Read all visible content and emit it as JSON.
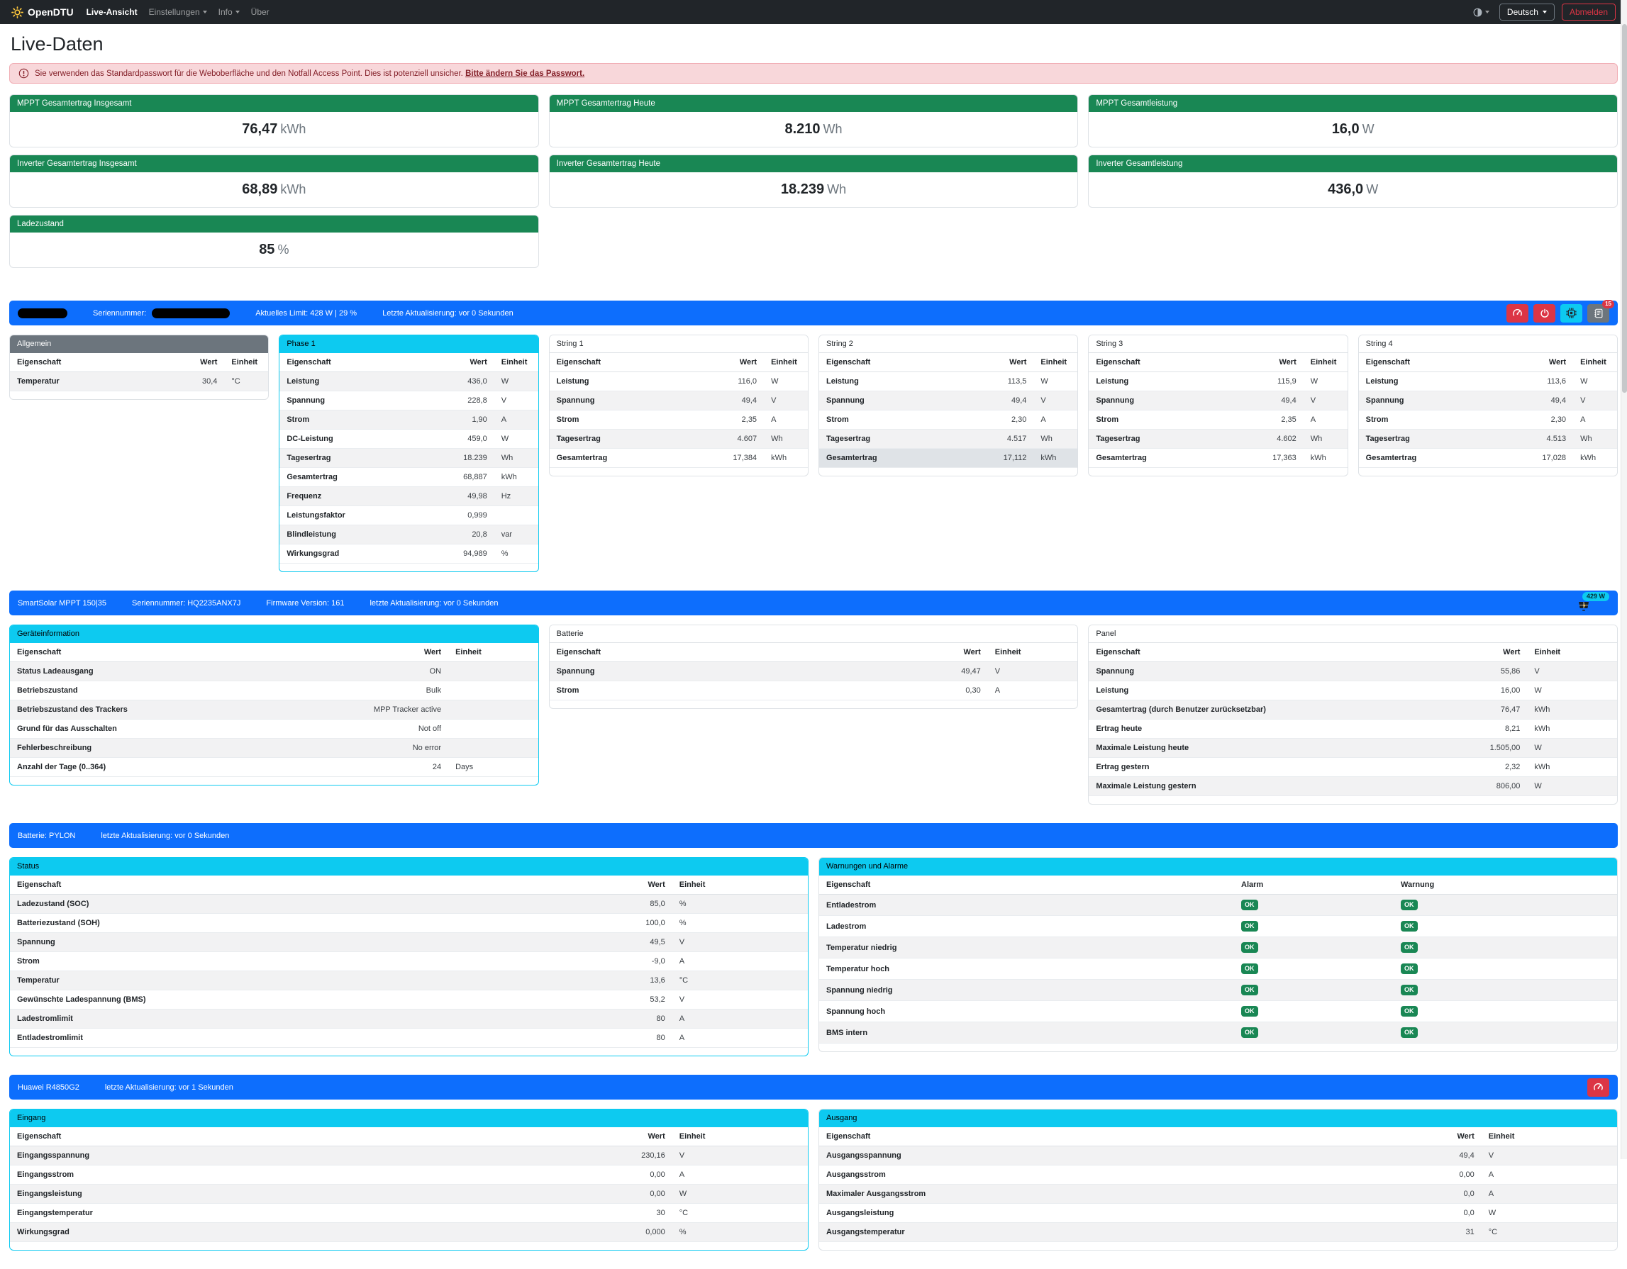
{
  "navbar": {
    "brand": "OpenDTU",
    "items": [
      {
        "label": "Live-Ansicht"
      },
      {
        "label": "Einstellungen"
      },
      {
        "label": "Info"
      },
      {
        "label": "Über"
      }
    ],
    "language": "Deutsch",
    "logout": "Abmelden"
  },
  "page": {
    "title": "Live-Daten"
  },
  "alert": {
    "text": "Sie verwenden das Standardpasswort für die Weboberfläche und den Notfall Access Point. Dies ist potenziell unsicher.",
    "link": "Bitte ändern Sie das Passwort."
  },
  "summary_cards": [
    {
      "title": "MPPT Gesamtertrag Insgesamt",
      "value": "76,47",
      "unit": "kWh"
    },
    {
      "title": "MPPT Gesamtertrag Heute",
      "value": "8.210",
      "unit": "Wh"
    },
    {
      "title": "MPPT Gesamtleistung",
      "value": "16,0",
      "unit": "W"
    },
    {
      "title": "Inverter Gesamtertrag Insgesamt",
      "value": "68,89",
      "unit": "kWh"
    },
    {
      "title": "Inverter Gesamtertrag Heute",
      "value": "18.239",
      "unit": "Wh"
    },
    {
      "title": "Inverter Gesamtleistung",
      "value": "436,0",
      "unit": "W"
    },
    {
      "title": "Ladezustand",
      "value": "85",
      "unit": "%"
    }
  ],
  "inverter": {
    "bar": {
      "serial_label": "Seriennummer:",
      "limit": "Aktuelles Limit: 428 W | 29 %",
      "updated": "Letzte Aktualisierung: vor 0 Sekunden",
      "events_count": "15"
    },
    "cards": {
      "allgemein": {
        "title": "Allgemein",
        "columns": [
          "Eigenschaft",
          "Wert",
          "Einheit"
        ],
        "stripe": "odd",
        "rows": [
          [
            "Temperatur",
            "30,4",
            "°C"
          ]
        ]
      },
      "phase1": {
        "title": "Phase 1",
        "columns": [
          "Eigenschaft",
          "Wert",
          "Einheit"
        ],
        "stripe": "odd",
        "rows": [
          [
            "Leistung",
            "436,0",
            "W"
          ],
          [
            "Spannung",
            "228,8",
            "V"
          ],
          [
            "Strom",
            "1,90",
            "A"
          ],
          [
            "DC-Leistung",
            "459,0",
            "W"
          ],
          [
            "Tagesertrag",
            "18.239",
            "Wh"
          ],
          [
            "Gesamtertrag",
            "68,887",
            "kWh"
          ],
          [
            "Frequenz",
            "49,98",
            "Hz"
          ],
          [
            "Leistungsfaktor",
            "0,999",
            ""
          ],
          [
            "Blindleistung",
            "20,8",
            "var"
          ],
          [
            "Wirkungsgrad",
            "94,989",
            "%"
          ]
        ]
      },
      "string1": {
        "title": "String 1",
        "columns": [
          "Eigenschaft",
          "Wert",
          "Einheit"
        ],
        "stripe": "even",
        "rows": [
          [
            "Leistung",
            "116,0",
            "W"
          ],
          [
            "Spannung",
            "49,4",
            "V"
          ],
          [
            "Strom",
            "2,35",
            "A"
          ],
          [
            "Tagesertrag",
            "4.607",
            "Wh"
          ],
          [
            "Gesamtertrag",
            "17,384",
            "kWh"
          ]
        ]
      },
      "string2": {
        "title": "String 2",
        "columns": [
          "Eigenschaft",
          "Wert",
          "Einheit"
        ],
        "stripe": "even",
        "highlight_row": 4,
        "rows": [
          [
            "Leistung",
            "113,5",
            "W"
          ],
          [
            "Spannung",
            "49,4",
            "V"
          ],
          [
            "Strom",
            "2,30",
            "A"
          ],
          [
            "Tagesertrag",
            "4.517",
            "Wh"
          ],
          [
            "Gesamtertrag",
            "17,112",
            "kWh"
          ]
        ]
      },
      "string3": {
        "title": "String 3",
        "columns": [
          "Eigenschaft",
          "Wert",
          "Einheit"
        ],
        "stripe": "even",
        "rows": [
          [
            "Leistung",
            "115,9",
            "W"
          ],
          [
            "Spannung",
            "49,4",
            "V"
          ],
          [
            "Strom",
            "2,35",
            "A"
          ],
          [
            "Tagesertrag",
            "4.602",
            "Wh"
          ],
          [
            "Gesamtertrag",
            "17,363",
            "kWh"
          ]
        ]
      },
      "string4": {
        "title": "String 4",
        "columns": [
          "Eigenschaft",
          "Wert",
          "Einheit"
        ],
        "stripe": "even",
        "rows": [
          [
            "Leistung",
            "113,6",
            "W"
          ],
          [
            "Spannung",
            "49,4",
            "V"
          ],
          [
            "Strom",
            "2,30",
            "A"
          ],
          [
            "Tagesertrag",
            "4.513",
            "Wh"
          ],
          [
            "Gesamtertrag",
            "17,028",
            "kWh"
          ]
        ]
      }
    }
  },
  "mppt": {
    "bar": {
      "title": "SmartSolar MPPT 150|35",
      "serial": "Seriennummer: HQ2235ANX7J",
      "firmware": "Firmware Version: 161",
      "updated": "letzte Aktualisierung: vor 0 Sekunden",
      "power_badge": "429 W"
    },
    "cards": {
      "geraeteinformation": {
        "title": "Geräteinformation",
        "columns": [
          "Eigenschaft",
          "Wert",
          "Einheit"
        ],
        "stripe": "odd",
        "rows": [
          [
            "Status Ladeausgang",
            "ON",
            ""
          ],
          [
            "Betriebszustand",
            "Bulk",
            ""
          ],
          [
            "Betriebszustand des Trackers",
            "MPP Tracker active",
            ""
          ],
          [
            "Grund für das Ausschalten",
            "Not off",
            ""
          ],
          [
            "Fehlerbeschreibung",
            "No error",
            ""
          ],
          [
            "Anzahl der Tage (0..364)",
            "24",
            "Days"
          ]
        ]
      },
      "batterie": {
        "title": "Batterie",
        "columns": [
          "Eigenschaft",
          "Wert",
          "Einheit"
        ],
        "stripe": "odd",
        "rows": [
          [
            "Spannung",
            "49,47",
            "V"
          ],
          [
            "Strom",
            "0,30",
            "A"
          ]
        ]
      },
      "panel": {
        "title": "Panel",
        "columns": [
          "Eigenschaft",
          "Wert",
          "Einheit"
        ],
        "stripe": "odd",
        "rows": [
          [
            "Spannung",
            "55,86",
            "V"
          ],
          [
            "Leistung",
            "16,00",
            "W"
          ],
          [
            "Gesamtertrag (durch Benutzer zurücksetzbar)",
            "76,47",
            "kWh"
          ],
          [
            "Ertrag heute",
            "8,21",
            "kWh"
          ],
          [
            "Maximale Leistung heute",
            "1.505,00",
            "W"
          ],
          [
            "Ertrag gestern",
            "2,32",
            "kWh"
          ],
          [
            "Maximale Leistung gestern",
            "806,00",
            "W"
          ]
        ]
      }
    }
  },
  "battery": {
    "bar": {
      "title": "Batterie: PYLON",
      "updated": "letzte Aktualisierung: vor 0 Sekunden"
    },
    "cards": {
      "status": {
        "title": "Status",
        "columns": [
          "Eigenschaft",
          "Wert",
          "Einheit"
        ],
        "stripe": "odd",
        "rows": [
          [
            "Ladezustand (SOC)",
            "85,0",
            "%"
          ],
          [
            "Batteriezustand (SOH)",
            "100,0",
            "%"
          ],
          [
            "Spannung",
            "49,5",
            "V"
          ],
          [
            "Strom",
            "-9,0",
            "A"
          ],
          [
            "Temperatur",
            "13,6",
            "°C"
          ],
          [
            "Gewünschte Ladespannung (BMS)",
            "53,2",
            "V"
          ],
          [
            "Ladestromlimit",
            "80",
            "A"
          ],
          [
            "Entladestromlimit",
            "80",
            "A"
          ]
        ]
      },
      "alarms": {
        "title": "Warnungen und Alarme",
        "columns": [
          "Eigenschaft",
          "Alarm",
          "Warnung"
        ],
        "stripe": "odd",
        "kind": "badges",
        "rows": [
          [
            "Entladestrom",
            "OK",
            "OK"
          ],
          [
            "Ladestrom",
            "OK",
            "OK"
          ],
          [
            "Temperatur niedrig",
            "OK",
            "OK"
          ],
          [
            "Temperatur hoch",
            "OK",
            "OK"
          ],
          [
            "Spannung niedrig",
            "OK",
            "OK"
          ],
          [
            "Spannung hoch",
            "OK",
            "OK"
          ],
          [
            "BMS intern",
            "OK",
            "OK"
          ]
        ]
      }
    }
  },
  "psu": {
    "bar": {
      "title": "Huawei R4850G2",
      "updated": "letzte Aktualisierung: vor 1 Sekunden"
    },
    "cards": {
      "eingang": {
        "title": "Eingang",
        "columns": [
          "Eigenschaft",
          "Wert",
          "Einheit"
        ],
        "stripe": "odd",
        "rows": [
          [
            "Eingangsspannung",
            "230,16",
            "V"
          ],
          [
            "Eingangsstrom",
            "0,00",
            "A"
          ],
          [
            "Eingangsleistung",
            "0,00",
            "W"
          ],
          [
            "Eingangstemperatur",
            "30",
            "°C"
          ],
          [
            "Wirkungsgrad",
            "0,000",
            "%"
          ]
        ]
      },
      "ausgang": {
        "title": "Ausgang",
        "columns": [
          "Eigenschaft",
          "Wert",
          "Einheit"
        ],
        "stripe": "odd",
        "rows": [
          [
            "Ausgangsspannung",
            "49,4",
            "V"
          ],
          [
            "Ausgangsstrom",
            "0,00",
            "A"
          ],
          [
            "Maximaler Ausgangsstrom",
            "0,0",
            "A"
          ],
          [
            "Ausgangsleistung",
            "0,0",
            "W"
          ],
          [
            "Ausgangstemperatur",
            "31",
            "°C"
          ]
        ]
      }
    }
  },
  "colors": {
    "primary": "#0d6efd",
    "info": "#0dcaf0",
    "success": "#198754",
    "danger": "#dc3545",
    "secondary": "#6c757d"
  }
}
